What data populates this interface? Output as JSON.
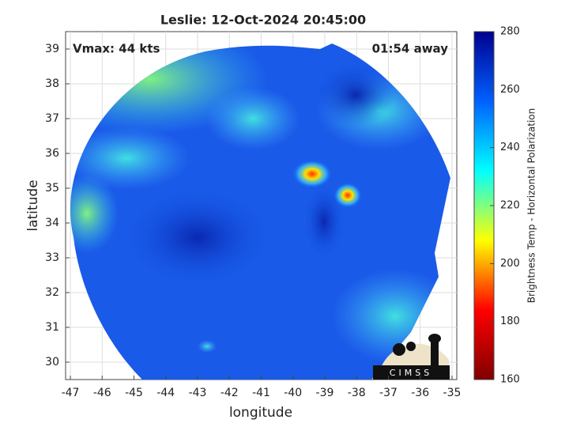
{
  "chart_data": {
    "type": "map",
    "title": "Leslie: 12-Oct-2024 20:45:00",
    "annotations": [
      "Vmax: 44 kts",
      "01:54 away"
    ],
    "xlabel": "longitude",
    "ylabel": "latitude",
    "xlim": [
      -47.15,
      -34.85
    ],
    "xticks": [
      -47,
      -46,
      -45,
      -44,
      -43,
      -42,
      -41,
      -40,
      -39,
      -38,
      -37,
      -36,
      -35
    ],
    "ylim": [
      29.5,
      39.5
    ],
    "yticks": [
      30,
      31,
      32,
      33,
      34,
      35,
      36,
      37,
      38,
      39
    ],
    "grid": true,
    "logo_text": "CIMSS",
    "colorbar": {
      "label": "Brightness Temp - Horizontal Polarization",
      "lim": [
        160,
        280
      ],
      "ticks": [
        160,
        180,
        200,
        220,
        240,
        260,
        280
      ],
      "colors": [
        "#800000",
        "#ff0000",
        "#ffff00",
        "#00ffff",
        "#0060ff",
        "#00008f"
      ]
    }
  }
}
